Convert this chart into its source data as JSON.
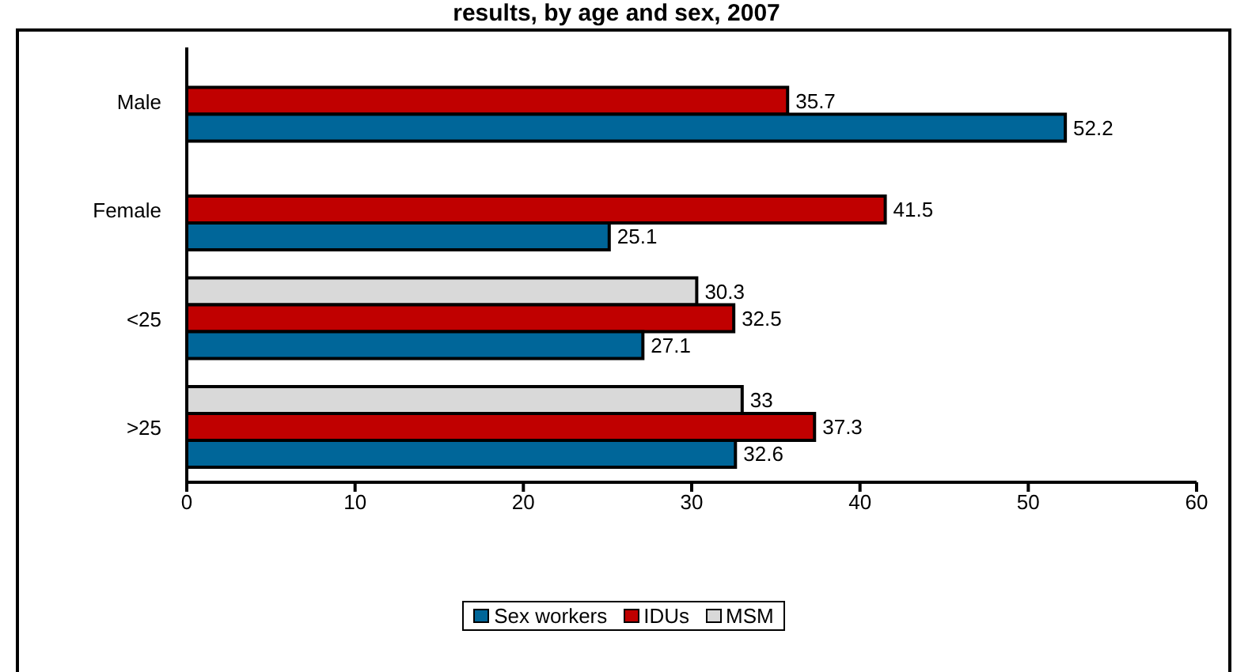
{
  "chart_data": {
    "type": "bar",
    "orientation": "horizontal",
    "title": "results, by age and sex, 2007",
    "categories": [
      "Male",
      "Female",
      "<25",
      ">25"
    ],
    "series": [
      {
        "name": "Sex workers",
        "color": "#006699",
        "values": [
          52.2,
          25.1,
          27.1,
          32.6
        ]
      },
      {
        "name": "IDUs",
        "color": "#c00000",
        "values": [
          35.7,
          41.5,
          32.5,
          37.3
        ]
      },
      {
        "name": "MSM",
        "color": "#d9d9d9",
        "values": [
          null,
          null,
          30.3,
          33
        ]
      }
    ],
    "xlim": [
      0,
      60
    ],
    "xticks": [
      0,
      10,
      20,
      30,
      40,
      50,
      60
    ],
    "data_labels": true,
    "grid": false,
    "legend": "bottom"
  }
}
